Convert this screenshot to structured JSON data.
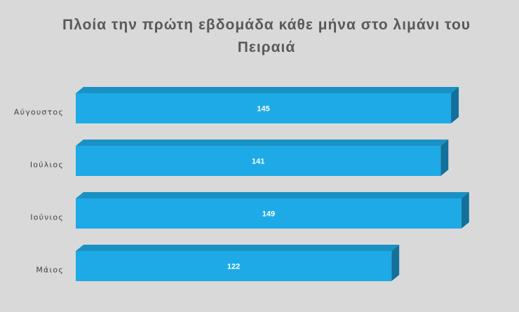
{
  "chart_data": {
    "type": "bar",
    "orientation": "horizontal",
    "title": "Πλοία  την πρώτη εβδομάδα κάθε μήνα στο λιμάνι του Πειραιά",
    "categories": [
      "Αύγουστος",
      "Ιούλιος",
      "Ιούνιος",
      "Μάιος"
    ],
    "values": [
      145,
      141,
      149,
      122
    ],
    "data_labels": [
      "145",
      "141",
      "149",
      "122"
    ],
    "xlabel": "",
    "ylabel": "",
    "grid": false,
    "legend": "none",
    "colors": {
      "bar_front": "#1eaae7",
      "bar_top": "#1a91c4",
      "bar_side": "#12709a",
      "background": "#d9d9d9",
      "title": "#595959"
    }
  }
}
